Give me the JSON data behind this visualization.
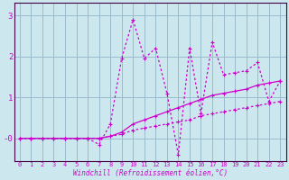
{
  "xlabel": "Windchill (Refroidissement éolien,°C)",
  "bg_color": "#cce8ee",
  "line_color": "#cc00cc",
  "grid_color": "#99bbcc",
  "axis_color": "#440044",
  "xlim": [
    -0.5,
    23.5
  ],
  "ylim": [
    -0.55,
    3.3
  ],
  "yticks": [
    0,
    1,
    2,
    3
  ],
  "ytick_labels": [
    "-0",
    "1",
    "2",
    "3"
  ],
  "xticks": [
    0,
    1,
    2,
    3,
    4,
    5,
    6,
    7,
    8,
    9,
    10,
    11,
    12,
    13,
    14,
    15,
    16,
    17,
    18,
    19,
    20,
    21,
    22,
    23
  ],
  "series_lower_x": [
    0,
    1,
    2,
    3,
    4,
    5,
    6,
    7,
    8,
    9,
    10,
    11,
    12,
    13,
    14,
    15,
    16,
    17,
    18,
    19,
    20,
    21,
    22,
    23
  ],
  "series_lower_y": [
    0.0,
    0.0,
    0.0,
    0.0,
    0.0,
    0.0,
    0.0,
    0.0,
    0.05,
    0.1,
    0.2,
    0.25,
    0.3,
    0.35,
    0.4,
    0.45,
    0.55,
    0.6,
    0.65,
    0.7,
    0.75,
    0.8,
    0.85,
    0.9
  ],
  "series_mid_x": [
    0,
    1,
    2,
    3,
    4,
    5,
    6,
    7,
    8,
    9,
    10,
    11,
    12,
    13,
    14,
    15,
    16,
    17,
    18,
    19,
    20,
    21,
    22,
    23
  ],
  "series_mid_y": [
    0.0,
    0.0,
    0.0,
    0.0,
    0.0,
    0.0,
    0.0,
    0.0,
    0.05,
    0.15,
    0.35,
    0.45,
    0.55,
    0.65,
    0.75,
    0.85,
    0.95,
    1.05,
    1.1,
    1.15,
    1.2,
    1.3,
    1.35,
    1.4
  ],
  "series_upper_x": [
    0,
    1,
    2,
    3,
    4,
    5,
    6,
    7,
    8,
    9,
    10,
    11,
    12,
    13,
    14,
    15,
    16,
    17,
    18,
    19,
    20,
    21,
    22,
    23
  ],
  "series_upper_y": [
    0.0,
    0.0,
    0.0,
    0.0,
    0.0,
    0.0,
    0.0,
    -0.15,
    0.35,
    1.95,
    2.9,
    1.95,
    2.2,
    1.1,
    -0.4,
    2.2,
    0.6,
    2.35,
    1.55,
    1.6,
    1.65,
    1.85,
    0.9,
    1.4
  ]
}
